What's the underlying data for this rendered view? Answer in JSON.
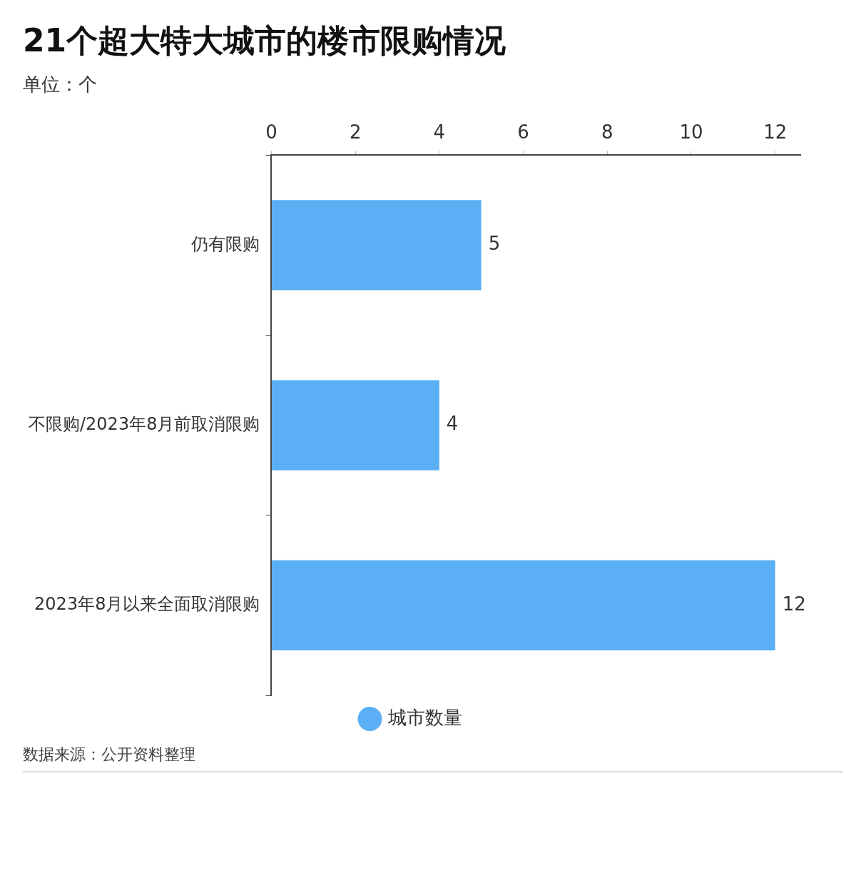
{
  "chart_data": {
    "type": "bar",
    "title": "21个超大特大城市的楼市限购情况",
    "subtitle": "单位：个",
    "orientation": "horizontal",
    "categories": [
      "仍有限购",
      "不限购/2023年8月前取消限购",
      "2023年8月以来全面取消限购"
    ],
    "series": [
      {
        "name": "城市数量",
        "color": "#5aaff5",
        "values": [
          5,
          4,
          12
        ]
      }
    ],
    "xlim": [
      0,
      12.6
    ],
    "xticks": [
      0,
      2,
      4,
      6,
      8,
      10,
      12
    ],
    "grid": false,
    "legend": "bottom",
    "data_labels": true,
    "annotations": [
      "数据来源：公开资料整理"
    ]
  }
}
